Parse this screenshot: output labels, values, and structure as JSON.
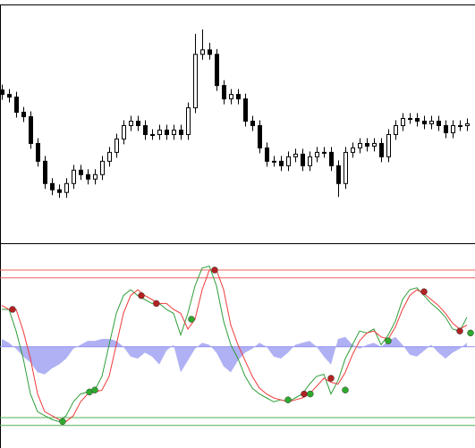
{
  "chart_data": [
    {
      "type": "candlestick",
      "ylim": [
        0,
        267
      ],
      "xlim": [
        -0.25,
        66.125
      ],
      "up_color": "#ffffff",
      "down_color": "#000000",
      "open": [
        172,
        167,
        164,
        147,
        142,
        112,
        92,
        67,
        60,
        57,
        67,
        82,
        77,
        72,
        77,
        92,
        102,
        117,
        132,
        137,
        132,
        122,
        122,
        127,
        122,
        127,
        122,
        152,
        212,
        217,
        212,
        177,
        162,
        167,
        162,
        137,
        132,
        107,
        92,
        92,
        87,
        97,
        100,
        87,
        97,
        102,
        102,
        87,
        67,
        102,
        107,
        112,
        109,
        112,
        97,
        122,
        132,
        140,
        140,
        137,
        134,
        137,
        132,
        124,
        132,
        132
      ],
      "high": [
        178,
        173,
        170,
        153,
        148,
        118,
        98,
        73,
        66,
        73,
        88,
        88,
        83,
        83,
        98,
        108,
        123,
        138,
        143,
        143,
        138,
        128,
        133,
        133,
        133,
        133,
        158,
        235,
        240,
        225,
        218,
        183,
        173,
        173,
        168,
        143,
        138,
        113,
        98,
        98,
        103,
        106,
        106,
        103,
        108,
        108,
        108,
        93,
        108,
        113,
        118,
        118,
        118,
        118,
        128,
        138,
        146,
        146,
        146,
        143,
        143,
        143,
        138,
        138,
        138,
        140
      ],
      "low": [
        161,
        158,
        141,
        136,
        106,
        86,
        61,
        54,
        51,
        51,
        61,
        71,
        66,
        66,
        71,
        86,
        96,
        111,
        126,
        126,
        116,
        116,
        116,
        116,
        116,
        116,
        116,
        146,
        206,
        206,
        171,
        156,
        156,
        156,
        131,
        126,
        101,
        86,
        86,
        81,
        81,
        91,
        81,
        81,
        91,
        96,
        81,
        52,
        61,
        96,
        101,
        103,
        103,
        91,
        91,
        116,
        126,
        134,
        131,
        128,
        128,
        126,
        118,
        118,
        126,
        126
      ],
      "close": [
        167,
        164,
        147,
        142,
        112,
        92,
        67,
        60,
        57,
        67,
        82,
        77,
        72,
        77,
        92,
        102,
        117,
        132,
        137,
        132,
        122,
        122,
        127,
        122,
        127,
        122,
        152,
        212,
        217,
        212,
        177,
        162,
        167,
        162,
        137,
        132,
        107,
        92,
        92,
        87,
        97,
        100,
        87,
        97,
        102,
        102,
        87,
        67,
        102,
        107,
        112,
        109,
        112,
        97,
        122,
        132,
        140,
        140,
        137,
        134,
        137,
        132,
        124,
        132,
        132,
        134
      ]
    },
    {
      "type": "oscillator",
      "ylim": [
        0,
        100
      ],
      "xlim": [
        -0.25,
        66.125
      ],
      "series": [
        {
          "color": "#2e9e3a",
          "values": [
            70,
            70,
            59,
            45,
            27,
            18,
            16,
            14,
            13,
            16,
            23,
            27,
            28,
            29,
            36,
            52,
            68,
            77,
            80,
            77,
            75,
            73,
            73,
            70,
            68,
            57,
            68,
            82,
            91,
            92,
            82,
            64,
            52,
            45,
            36,
            30,
            27,
            25,
            23,
            24,
            23,
            25,
            27,
            32,
            36,
            37,
            27,
            34,
            45,
            52,
            59,
            58,
            60,
            52,
            57,
            64,
            75,
            80,
            81,
            77,
            73,
            70,
            66,
            60,
            59,
            66
          ]
        },
        {
          "color": "#f03a3a",
          "values": [
            72,
            70,
            70,
            59,
            45,
            27,
            18,
            16,
            14,
            13,
            16,
            23,
            27,
            28,
            29,
            36,
            52,
            68,
            77,
            80,
            77,
            75,
            73,
            73,
            70,
            68,
            60,
            65,
            80,
            90,
            90,
            80,
            62,
            52,
            44,
            36,
            30,
            27,
            25,
            24,
            23,
            24,
            25,
            27,
            31,
            35,
            33,
            32,
            38,
            47,
            54,
            58,
            59,
            56,
            55,
            61,
            70,
            77,
            80,
            78,
            75,
            72,
            68,
            63,
            60,
            62
          ]
        }
      ],
      "histogram": {
        "color": "#8f8ff0",
        "base": 51,
        "values": [
          55,
          53,
          50,
          46,
          43,
          38,
          37,
          40,
          42,
          45,
          50,
          52,
          54,
          54,
          55,
          55,
          54,
          51,
          46,
          45,
          48,
          46,
          42,
          49,
          52,
          38,
          44,
          50,
          53,
          52,
          48,
          41,
          38,
          44,
          48,
          50,
          53,
          51,
          46,
          45,
          48,
          52,
          53,
          54,
          51,
          46,
          42,
          55,
          56,
          52,
          50,
          52,
          53,
          51,
          54,
          56,
          52,
          47,
          46,
          49,
          52,
          48,
          45,
          48,
          50,
          53
        ]
      },
      "levels": [
        {
          "value": 90,
          "color": "#f06060"
        },
        {
          "value": 86,
          "color": "#f06060"
        },
        {
          "value": 15,
          "color": "#50b050"
        },
        {
          "value": 11,
          "color": "#50b050"
        }
      ],
      "signals": [
        {
          "color": "#b22222",
          "x": [
            1.5,
            19.5,
            21.6,
            29.75,
            42.25,
            46,
            59,
            64
          ],
          "values": [
            70,
            77,
            73,
            90,
            27,
            35,
            79,
            59
          ]
        },
        {
          "color": "#2eaa2e",
          "x": [
            8.5,
            12.25,
            13,
            26.5,
            40,
            43.1,
            48,
            54,
            65.5
          ],
          "values": [
            13,
            28,
            29,
            65,
            24,
            27,
            29,
            54,
            58
          ]
        }
      ]
    }
  ]
}
